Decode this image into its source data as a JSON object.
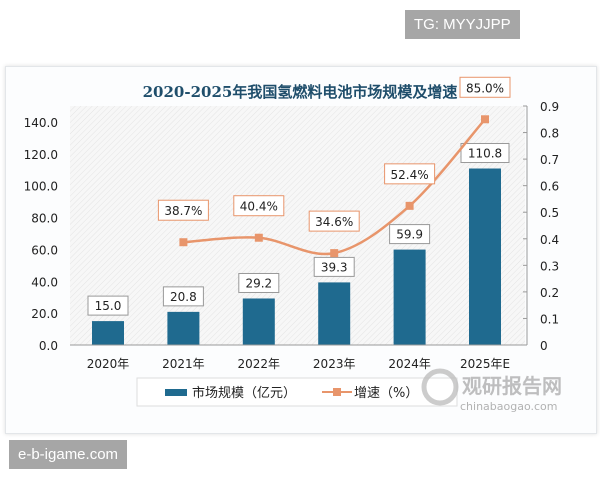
{
  "watermarks": {
    "top": "TG: MYYJJPP",
    "bottom": "e-b-igame.com",
    "logo_cn": "观研报告网",
    "logo_en": "chinabaogao.com"
  },
  "chart_data": {
    "type": "bar+line",
    "title": "2020-2025年我国氢燃料电池市场规模及增速",
    "categories": [
      "2020年",
      "2021年",
      "2022年",
      "2023年",
      "2024年",
      "2025年E"
    ],
    "series": [
      {
        "name": "市场规模（亿元）",
        "type": "bar",
        "axis": "left",
        "values": [
          15.0,
          20.8,
          29.2,
          39.3,
          59.9,
          110.8
        ],
        "labels": [
          "15.0",
          "20.8",
          "29.2",
          "39.3",
          "59.9",
          "110.8"
        ],
        "color": "#1f6a8f"
      },
      {
        "name": "增速（%）",
        "type": "line",
        "axis": "right",
        "values": [
          null,
          0.387,
          0.404,
          0.346,
          0.524,
          0.85
        ],
        "labels": [
          "",
          "38.7%",
          "40.4%",
          "34.6%",
          "52.4%",
          "85.0%"
        ],
        "color": "#e8956b"
      }
    ],
    "left_axis": {
      "ylim": [
        0,
        140
      ],
      "ticks": [
        "0.0",
        "20.0",
        "40.0",
        "60.0",
        "80.0",
        "100.0",
        "120.0",
        "140.0"
      ]
    },
    "right_axis": {
      "ylim": [
        0,
        0.9
      ],
      "ticks": [
        "0",
        "0.1",
        "0.2",
        "0.3",
        "0.4",
        "0.5",
        "0.6",
        "0.7",
        "0.8",
        "0.9"
      ]
    },
    "legend": "bottom"
  }
}
